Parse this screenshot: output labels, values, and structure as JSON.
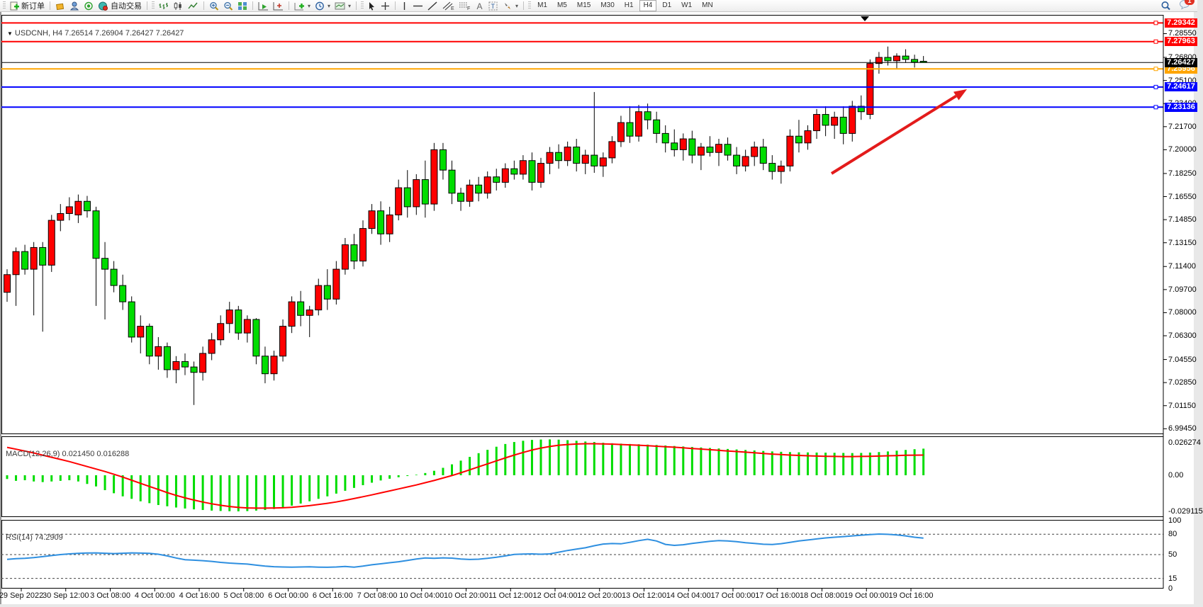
{
  "toolbar": {
    "new_order_label": "新订单",
    "autotrading_label": "自动交易",
    "timeframes": [
      "M1",
      "M5",
      "M15",
      "M30",
      "H1",
      "H4",
      "D1",
      "W1",
      "MN"
    ],
    "active_timeframe": "H4",
    "notification_badge": "1"
  },
  "chart_data": {
    "type": "candlestick",
    "symbol": "USDCNH",
    "timeframe": "H4",
    "title": "USDCNH, H4 7.26514 7.26904 7.26427 7.26427",
    "ohlc_current": {
      "open": "7.26514",
      "high": "7.26904",
      "low": "7.26427",
      "close": "7.26427"
    },
    "ylim": [
      6.9905,
      7.2988
    ],
    "price_axis_ticks": [
      "7.28550",
      "7.26800",
      "7.25100",
      "7.23400",
      "7.21700",
      "7.20000",
      "7.18250",
      "7.16550",
      "7.14850",
      "7.13150",
      "7.11400",
      "7.09700",
      "7.08000",
      "7.06300",
      "7.04550",
      "7.02850",
      "7.01150",
      "6.99450"
    ],
    "current_price": {
      "price": 7.26427,
      "label": "7.26427",
      "color": "#000000"
    },
    "hlines": [
      {
        "price": 7.29342,
        "label": "7.29342",
        "color": "#ff0000"
      },
      {
        "price": 7.27963,
        "label": "7.27963",
        "color": "#ff0000"
      },
      {
        "price": 7.25956,
        "label": "7.25956",
        "color": "#ffa500"
      },
      {
        "price": 7.24617,
        "label": "7.24617",
        "color": "#0000ff"
      },
      {
        "price": 7.23136,
        "label": "7.23136",
        "color": "#0000ff"
      }
    ],
    "bull_color": "#ff0000",
    "bear_color": "#00dd00",
    "x_labels": [
      "29 Sep 2022",
      "30 Sep 12:00",
      "3 Oct 08:00",
      "4 Oct 00:00",
      "4 Oct 16:00",
      "5 Oct 08:00",
      "6 Oct 00:00",
      "6 Oct 16:00",
      "7 Oct 08:00",
      "10 Oct 04:00",
      "10 Oct 20:00",
      "11 Oct 12:00",
      "12 Oct 04:00",
      "12 Oct 20:00",
      "13 Oct 12:00",
      "14 Oct 04:00",
      "17 Oct 00:00",
      "17 Oct 16:00",
      "18 Oct 08:00",
      "19 Oct 00:00",
      "19 Oct 16:00"
    ],
    "candles": [
      [
        7.095,
        7.112,
        7.088,
        7.108
      ],
      [
        7.108,
        7.128,
        7.085,
        7.125
      ],
      [
        7.125,
        7.13,
        7.108,
        7.112
      ],
      [
        7.112,
        7.132,
        7.078,
        7.128
      ],
      [
        7.128,
        7.132,
        7.066,
        7.115
      ],
      [
        7.115,
        7.152,
        7.11,
        7.148
      ],
      [
        7.148,
        7.16,
        7.14,
        7.153
      ],
      [
        7.153,
        7.165,
        7.148,
        7.158
      ],
      [
        7.152,
        7.167,
        7.146,
        7.162
      ],
      [
        7.162,
        7.166,
        7.15,
        7.155
      ],
      [
        7.155,
        7.158,
        7.085,
        7.12
      ],
      [
        7.12,
        7.132,
        7.075,
        7.112
      ],
      [
        7.112,
        7.118,
        7.095,
        7.1
      ],
      [
        7.1,
        7.108,
        7.082,
        7.088
      ],
      [
        7.088,
        7.092,
        7.058,
        7.062
      ],
      [
        7.062,
        7.078,
        7.05,
        7.07
      ],
      [
        7.07,
        7.072,
        7.042,
        7.048
      ],
      [
        7.048,
        7.062,
        7.038,
        7.055
      ],
      [
        7.055,
        7.058,
        7.032,
        7.038
      ],
      [
        7.038,
        7.048,
        7.028,
        7.044
      ],
      [
        7.044,
        7.05,
        7.034,
        7.04
      ],
      [
        7.04,
        7.044,
        7.012,
        7.036
      ],
      [
        7.036,
        7.055,
        7.03,
        7.05
      ],
      [
        7.05,
        7.065,
        7.045,
        7.06
      ],
      [
        7.06,
        7.078,
        7.056,
        7.072
      ],
      [
        7.072,
        7.088,
        7.065,
        7.082
      ],
      [
        7.082,
        7.085,
        7.06,
        7.065
      ],
      [
        7.065,
        7.078,
        7.058,
        7.075
      ],
      [
        7.075,
        7.076,
        7.042,
        7.048
      ],
      [
        7.048,
        7.055,
        7.028,
        7.035
      ],
      [
        7.035,
        7.052,
        7.03,
        7.048
      ],
      [
        7.048,
        7.075,
        7.044,
        7.07
      ],
      [
        7.07,
        7.092,
        7.065,
        7.088
      ],
      [
        7.088,
        7.096,
        7.07,
        7.078
      ],
      [
        7.078,
        7.085,
        7.062,
        7.082
      ],
      [
        7.082,
        7.105,
        7.078,
        7.1
      ],
      [
        7.1,
        7.112,
        7.082,
        7.09
      ],
      [
        7.09,
        7.118,
        7.086,
        7.112
      ],
      [
        7.112,
        7.135,
        7.108,
        7.13
      ],
      [
        7.13,
        7.138,
        7.112,
        7.118
      ],
      [
        7.118,
        7.148,
        7.114,
        7.142
      ],
      [
        7.142,
        7.16,
        7.138,
        7.155
      ],
      [
        7.155,
        7.162,
        7.13,
        7.138
      ],
      [
        7.138,
        7.158,
        7.132,
        7.152
      ],
      [
        7.152,
        7.178,
        7.148,
        7.172
      ],
      [
        7.172,
        7.185,
        7.15,
        7.158
      ],
      [
        7.158,
        7.182,
        7.152,
        7.178
      ],
      [
        7.178,
        7.192,
        7.15,
        7.16
      ],
      [
        7.16,
        7.205,
        7.155,
        7.2
      ],
      [
        7.2,
        7.205,
        7.178,
        7.185
      ],
      [
        7.185,
        7.192,
        7.16,
        7.168
      ],
      [
        7.168,
        7.172,
        7.155,
        7.162
      ],
      [
        7.162,
        7.178,
        7.158,
        7.174
      ],
      [
        7.174,
        7.18,
        7.162,
        7.168
      ],
      [
        7.168,
        7.184,
        7.164,
        7.18
      ],
      [
        7.18,
        7.186,
        7.17,
        7.176
      ],
      [
        7.176,
        7.19,
        7.172,
        7.186
      ],
      [
        7.186,
        7.192,
        7.178,
        7.182
      ],
      [
        7.182,
        7.196,
        7.178,
        7.192
      ],
      [
        7.192,
        7.198,
        7.17,
        7.176
      ],
      [
        7.176,
        7.194,
        7.172,
        7.19
      ],
      [
        7.19,
        7.202,
        7.182,
        7.198
      ],
      [
        7.198,
        7.204,
        7.186,
        7.192
      ],
      [
        7.192,
        7.206,
        7.188,
        7.202
      ],
      [
        7.202,
        7.208,
        7.184,
        7.19
      ],
      [
        7.19,
        7.2,
        7.182,
        7.196
      ],
      [
        7.196,
        7.2425,
        7.183,
        7.188
      ],
      [
        7.188,
        7.198,
        7.18,
        7.194
      ],
      [
        7.194,
        7.21,
        7.19,
        7.206
      ],
      [
        7.206,
        7.225,
        7.202,
        7.22
      ],
      [
        7.22,
        7.232,
        7.205,
        7.21
      ],
      [
        7.21,
        7.233,
        7.206,
        7.228
      ],
      [
        7.228,
        7.234,
        7.215,
        7.222
      ],
      [
        7.222,
        7.228,
        7.205,
        7.212
      ],
      [
        7.212,
        7.218,
        7.198,
        7.205
      ],
      [
        7.205,
        7.215,
        7.195,
        7.2
      ],
      [
        7.2,
        7.212,
        7.192,
        7.208
      ],
      [
        7.208,
        7.214,
        7.19,
        7.196
      ],
      [
        7.196,
        7.205,
        7.185,
        7.202
      ],
      [
        7.202,
        7.21,
        7.195,
        7.198
      ],
      [
        7.198,
        7.208,
        7.188,
        7.204
      ],
      [
        7.204,
        7.209,
        7.192,
        7.196
      ],
      [
        7.196,
        7.202,
        7.182,
        7.188
      ],
      [
        7.188,
        7.2,
        7.184,
        7.195
      ],
      [
        7.195,
        7.206,
        7.188,
        7.202
      ],
      [
        7.202,
        7.208,
        7.185,
        7.19
      ],
      [
        7.19,
        7.196,
        7.178,
        7.184
      ],
      [
        7.184,
        7.192,
        7.175,
        7.188
      ],
      [
        7.188,
        7.215,
        7.184,
        7.21
      ],
      [
        7.21,
        7.222,
        7.198,
        7.205
      ],
      [
        7.205,
        7.218,
        7.2,
        7.214
      ],
      [
        7.214,
        7.23,
        7.208,
        7.226
      ],
      [
        7.226,
        7.232,
        7.21,
        7.218
      ],
      [
        7.218,
        7.228,
        7.208,
        7.224
      ],
      [
        7.224,
        7.232,
        7.204,
        7.212
      ],
      [
        7.212,
        7.236,
        7.206,
        7.232
      ],
      [
        7.232,
        7.24,
        7.222,
        7.228
      ],
      [
        7.226,
        7.2665,
        7.2225,
        7.2635
      ],
      [
        7.2635,
        7.272,
        7.256,
        7.268
      ],
      [
        7.268,
        7.276,
        7.262,
        7.2655
      ],
      [
        7.2655,
        7.271,
        7.26,
        7.269
      ],
      [
        7.269,
        7.274,
        7.264,
        7.2665
      ],
      [
        7.2665,
        7.27,
        7.2605,
        7.2645
      ],
      [
        7.26514,
        7.26904,
        7.26427,
        7.26427
      ]
    ],
    "annotations": {
      "trend_arrow": {
        "color": "#e31b1b",
        "x1": 1171,
        "y1": 245,
        "x2": 1362,
        "y2": 126
      }
    },
    "indicators": {
      "macd": {
        "label": "MACD(12,26,9) 0.021450 0.016288",
        "macd_value": "0.021450",
        "signal_value": "0.016288",
        "axis_labels": [
          "0.026274",
          "0.00",
          "-0.029115"
        ],
        "histogram_color": "#00dd00",
        "signal_color": "#ff0000",
        "histogram": [
          -0.003,
          -0.0045,
          -0.004,
          -0.005,
          -0.0055,
          -0.005,
          -0.0045,
          -0.004,
          -0.005,
          -0.007,
          -0.009,
          -0.012,
          -0.0145,
          -0.017,
          -0.019,
          -0.021,
          -0.0225,
          -0.024,
          -0.025,
          -0.026,
          -0.0268,
          -0.0275,
          -0.028,
          -0.0285,
          -0.0288,
          -0.029,
          -0.0291,
          -0.0289,
          -0.0285,
          -0.028,
          -0.0272,
          -0.026,
          -0.0245,
          -0.0228,
          -0.021,
          -0.019,
          -0.017,
          -0.0148,
          -0.0125,
          -0.0102,
          -0.008,
          -0.006,
          -0.0042,
          -0.0028,
          -0.0016,
          -0.0006,
          0.0004,
          0.0018,
          0.0036,
          0.006,
          0.0088,
          0.0118,
          0.0148,
          0.0178,
          0.0205,
          0.023,
          0.0252,
          0.0268,
          0.0278,
          0.0285,
          0.0288,
          0.0289,
          0.0287,
          0.0283,
          0.0278,
          0.0272,
          0.0268,
          0.0262,
          0.0258,
          0.0255,
          0.0252,
          0.025,
          0.0247,
          0.0244,
          0.024,
          0.0236,
          0.0232,
          0.0228,
          0.0224,
          0.022,
          0.0216,
          0.0212,
          0.0208,
          0.0204,
          0.02,
          0.0196,
          0.0192,
          0.0189,
          0.0187,
          0.0185,
          0.0184,
          0.0183,
          0.0182,
          0.0181,
          0.018,
          0.0179,
          0.018,
          0.0183,
          0.0187,
          0.0192,
          0.0198,
          0.0204,
          0.021,
          0.02145
        ],
        "signal": [
          0.0225,
          0.021,
          0.0195,
          0.018,
          0.0162,
          0.0145,
          0.0128,
          0.011,
          0.009,
          0.007,
          0.005,
          0.003,
          0.0008,
          -0.0015,
          -0.004,
          -0.0065,
          -0.009,
          -0.0115,
          -0.014,
          -0.0162,
          -0.0182,
          -0.02,
          -0.0216,
          -0.023,
          -0.0242,
          -0.0252,
          -0.0259,
          -0.0263,
          -0.0265,
          -0.0265,
          -0.0264,
          -0.0262,
          -0.0258,
          -0.0252,
          -0.0245,
          -0.0236,
          -0.0226,
          -0.0215,
          -0.0202,
          -0.0188,
          -0.0173,
          -0.0158,
          -0.0142,
          -0.0126,
          -0.011,
          -0.0094,
          -0.0078,
          -0.006,
          -0.0042,
          -0.0022,
          -0.0002,
          0.002,
          0.0044,
          0.0068,
          0.0092,
          0.0116,
          0.014,
          0.0163,
          0.0184,
          0.0203,
          0.0219,
          0.0232,
          0.0242,
          0.0248,
          0.0252,
          0.0254,
          0.0254,
          0.0253,
          0.0251,
          0.0248,
          0.0245,
          0.0242,
          0.0238,
          0.0234,
          0.023,
          0.0226,
          0.0221,
          0.0216,
          0.0211,
          0.0206,
          0.0201,
          0.0196,
          0.0191,
          0.0186,
          0.0181,
          0.0176,
          0.0171,
          0.0167,
          0.0163,
          0.016,
          0.0157,
          0.0155,
          0.0153,
          0.0152,
          0.0151,
          0.0151,
          0.0152,
          0.0153,
          0.0155,
          0.0157,
          0.0159,
          0.0161,
          0.0162,
          0.016288
        ]
      },
      "rsi": {
        "label": "RSI(14) 74.2909",
        "current_value": "74.2909",
        "line_color": "#2e8fe0",
        "axis_levels": [
          "100",
          "80",
          "50",
          "15",
          "0"
        ],
        "dashed_levels": [
          80,
          50,
          15
        ],
        "values": [
          43,
          44,
          44.5,
          45.5,
          47,
          48.5,
          50,
          51,
          51.8,
          52.3,
          52.5,
          52,
          51.5,
          52,
          52.5,
          52.2,
          51.8,
          50.5,
          48,
          45,
          42.5,
          41.8,
          41,
          40,
          38.5,
          37.5,
          36.8,
          36,
          34.5,
          33,
          32.2,
          31.8,
          31.5,
          31.8,
          32,
          31.6,
          31.4,
          31.8,
          32.5,
          31.5,
          33,
          35,
          36.5,
          38,
          39.5,
          41.5,
          43.5,
          45,
          44.5,
          45.2,
          44.8,
          43.5,
          42.8,
          43.2,
          44.5,
          46,
          48,
          50.2,
          50.8,
          51,
          50.5,
          51,
          53.5,
          56,
          58,
          60,
          63,
          65.5,
          66.2,
          65.8,
          68,
          70.5,
          72.5,
          70,
          65,
          63.5,
          64.5,
          66.5,
          68,
          69.5,
          70.5,
          70,
          69,
          67.5,
          66.5,
          65.2,
          64.8,
          66,
          68,
          70,
          71.5,
          73,
          74.5,
          75.5,
          76.5,
          77.5,
          78.5,
          79.5,
          80.2,
          79.8,
          79,
          77.5,
          75.5,
          74.2909
        ]
      }
    }
  }
}
